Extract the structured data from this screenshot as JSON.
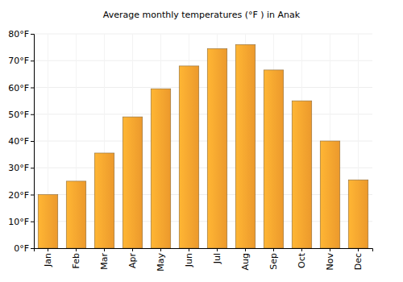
{
  "chart_data": {
    "type": "bar",
    "title": "Average monthly temperatures (°F ) in Anak",
    "categories": [
      "Jan",
      "Feb",
      "Mar",
      "Apr",
      "May",
      "Jun",
      "Jul",
      "Aug",
      "Sep",
      "Oct",
      "Nov",
      "Dec"
    ],
    "values": [
      20,
      25,
      35.5,
      49,
      59.5,
      68,
      74.5,
      76,
      66.5,
      55,
      40,
      25.5
    ],
    "color": "#f9a12e",
    "ylim": [
      0,
      80
    ],
    "yticks": [
      {
        "value": 0,
        "label": "0°F"
      },
      {
        "value": 10,
        "label": "10°F"
      },
      {
        "value": 20,
        "label": "20°F"
      },
      {
        "value": 30,
        "label": "30°F"
      },
      {
        "value": 40,
        "label": "40°F"
      },
      {
        "value": 50,
        "label": "50°F"
      },
      {
        "value": 60,
        "label": "60°F"
      },
      {
        "value": 70,
        "label": "70°F"
      },
      {
        "value": 80,
        "label": "80°F"
      }
    ],
    "grid": true
  }
}
